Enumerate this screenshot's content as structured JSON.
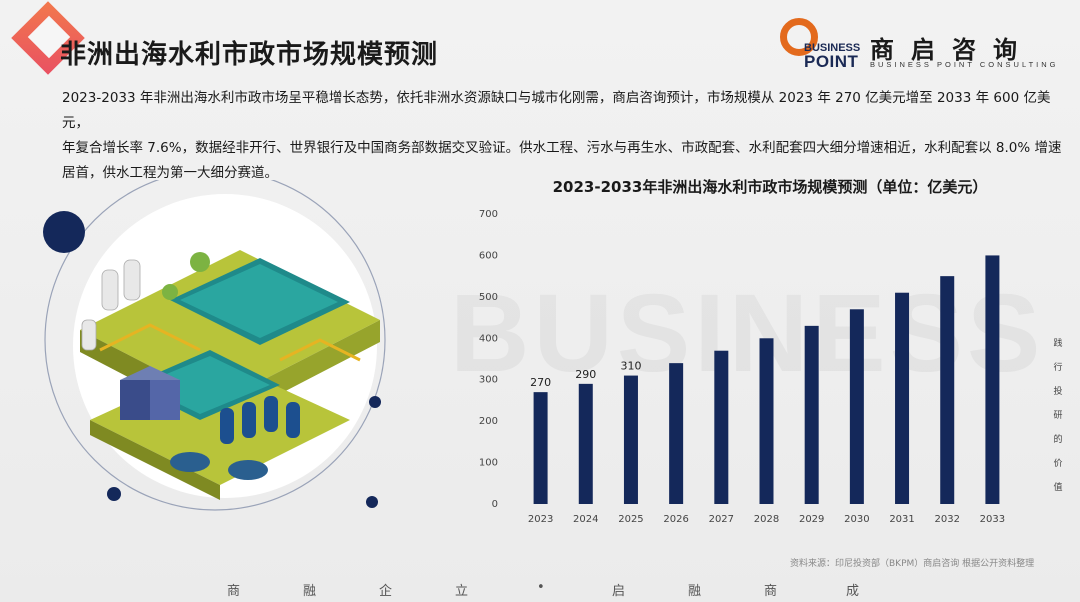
{
  "header": {
    "title": "非洲出海水利市政市场规模预测"
  },
  "logo": {
    "business": "BUSINESS",
    "point": "POINT",
    "cn_name": "商启咨询",
    "en_name": "BUSINESS POINT CONSULTING"
  },
  "intro": {
    "line1": "2023-2033 年非洲出海水利市政市场呈平稳增长态势，依托非洲水资源缺口与城市化刚需，商启咨询预计，市场规模从 2023 年 270 亿美元增至 2033 年 600 亿美元，",
    "line2": "年复合增长率 7.6%，数据经非开行、世界银行及中国商务部数据交叉验证。供水工程、污水与再生水、市政配套、水利配套四大细分增速相近，水利配套以 8.0% 增速",
    "line3": "居首，供水工程为第一大细分赛道。"
  },
  "chart_data": {
    "type": "bar",
    "title": "2023-2033年非洲出海水利市政市场规模预测（单位：亿美元）",
    "categories": [
      "2023",
      "2024",
      "2025",
      "2026",
      "2027",
      "2028",
      "2029",
      "2030",
      "2031",
      "2032",
      "2033"
    ],
    "values": [
      270,
      290,
      310,
      340,
      370,
      400,
      430,
      470,
      510,
      550,
      600
    ],
    "labels_visible": [
      "270",
      "290",
      "310",
      "",
      "",
      "",
      "",
      "",
      "",
      "",
      ""
    ],
    "ylim": [
      0,
      700
    ],
    "yticks": [
      "0",
      "100",
      "200",
      "300",
      "400",
      "500",
      "600",
      "700"
    ],
    "grid": false,
    "bar_color": "#14285a"
  },
  "source": "资料来源：印尼投资部（BKPM）商启咨询 根据公开资料整理",
  "side_label": [
    "践",
    "行",
    "投",
    "研",
    "的",
    "价",
    "值"
  ],
  "footer": [
    "商",
    "融",
    "企",
    "立",
    "•",
    "启",
    "融",
    "商",
    "成"
  ],
  "watermark": "BUSINESS"
}
